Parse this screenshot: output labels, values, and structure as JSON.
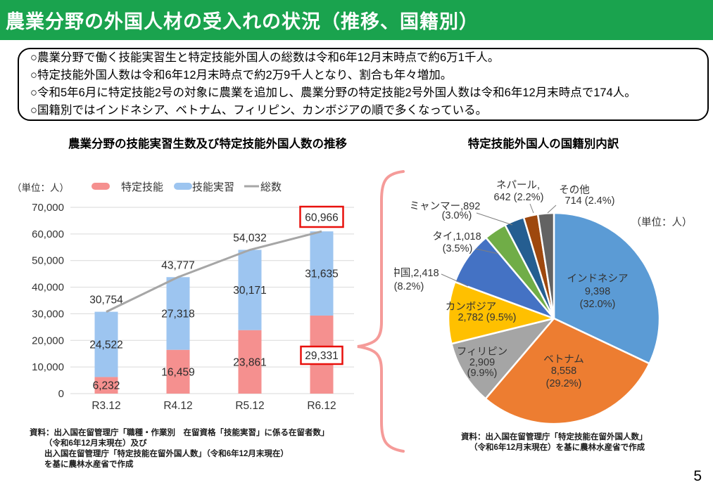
{
  "page": {
    "number": "5"
  },
  "header": {
    "title": "農業分野の外国人材の受入れの状況（推移、国籍別）",
    "bg_color": "#1AA34E",
    "text_color": "#FFFFFF"
  },
  "summary_box": {
    "bullets": [
      "○農業分野で働く技能実習生と特定技能外国人の総数は令和6年12月末時点で約6万1千人。",
      "○特定技能外国人数は令和6年12月末時点で約2万9千人となり、割合も年々増加。",
      "○令和5年6月に特定技能2号の対象に農業を追加し、農業分野の特定技能2号外国人数は令和6年12月末時点で174人。",
      "○国籍別ではインドネシア、ベトナム、フィリピン、カンボジアの順で多くなっている。"
    ]
  },
  "bar_section": {
    "unit_label": "（単位：人）",
    "source_lines": [
      "資料：出入国在留管理庁「職種・作業別　在留資格「技能実習」に係る在留者数」",
      "（令和6年12月末現在）及び",
      "出入国在留管理庁「特定技能在留外国人数」（令和6年12月末現在）",
      "を基に農林水産省で作成"
    ]
  },
  "pie_section": {
    "unit_label": "（単位：人）",
    "source_lines": [
      "資料：出入国在留管理庁「特定技能在留外国人数」",
      "（令和6年12月末現在）を基に農林水産省で作成"
    ]
  },
  "chart_data": [
    {
      "type": "bar",
      "title": "農業分野の技能実習生数及び特定技能外国人数の推移",
      "stacked": true,
      "categories": [
        "R3.12",
        "R4.12",
        "R5.12",
        "R6.12"
      ],
      "series": [
        {
          "name": "特定技能",
          "color": "#F5908F",
          "values": [
            6232,
            16459,
            23861,
            29331
          ],
          "labels": [
            "6,232",
            "16,459",
            "23,861",
            "29,331"
          ]
        },
        {
          "name": "技能実習",
          "color": "#9DC5F0",
          "values": [
            24522,
            27318,
            30171,
            31635
          ],
          "labels": [
            "24,522",
            "27,318",
            "30,171",
            "31,635"
          ]
        }
      ],
      "total_series": {
        "name": "総数",
        "color": "#A6A6A6",
        "values": [
          30754,
          43777,
          54032,
          60966
        ],
        "labels": [
          "30,754",
          "43,777",
          "54,032",
          "60,966"
        ]
      },
      "ylim": [
        0,
        70000
      ],
      "ytick_labels": [
        "0",
        "10,000",
        "20,000",
        "30,000",
        "40,000",
        "50,000",
        "60,000",
        "70,000"
      ],
      "grid": true,
      "legend_position": "top",
      "highlight_box_color": "#E8100C",
      "highlighted_values": [
        "60,966",
        "29,331"
      ]
    },
    {
      "type": "pie",
      "title": "特定技能外国人の国籍別内訳",
      "unit_label": "（単位：人）",
      "total": 29331,
      "start_angle_deg": 0,
      "direction": "clockwise",
      "slices": [
        {
          "name": "インドネシア",
          "value": 9398,
          "pct": 32.0,
          "color": "#5B9BD5",
          "label_lines": [
            "インドネシア",
            "9,398",
            "(32.0%)"
          ]
        },
        {
          "name": "ベトナム",
          "value": 8558,
          "pct": 29.2,
          "color": "#ED7D31",
          "label_lines": [
            "ベトナム",
            "8,558",
            "(29.2%)"
          ]
        },
        {
          "name": "フィリピン",
          "value": 2909,
          "pct": 9.9,
          "color": "#A5A5A5",
          "label_lines": [
            "フィリピン",
            "2,909",
            "(9.9%)"
          ]
        },
        {
          "name": "カンボジア",
          "value": 2782,
          "pct": 9.5,
          "color": "#FFC000",
          "label_lines": [
            "カンボジア",
            "2,782 (9.5%)"
          ]
        },
        {
          "name": "中国",
          "value": 2418,
          "pct": 8.2,
          "color": "#4472C4",
          "label_lines": [
            "中国,2,418",
            "(8.2%)"
          ]
        },
        {
          "name": "タイ",
          "value": 1018,
          "pct": 3.5,
          "color": "#70AD47",
          "label_lines": [
            "タイ,1,018",
            "(3.5%)"
          ]
        },
        {
          "name": "ミャンマー",
          "value": 892,
          "pct": 3.0,
          "color": "#255E91",
          "label_lines": [
            "ミャンマー,892",
            "(3.0%)"
          ]
        },
        {
          "name": "ネパール",
          "value": 642,
          "pct": 2.2,
          "color": "#9E480E",
          "label_lines": [
            "ネパール,",
            "642 (2.2%)"
          ]
        },
        {
          "name": "その他",
          "value": 714,
          "pct": 2.4,
          "color": "#636363",
          "label_lines": [
            "その他",
            "714 (2.4%)"
          ]
        }
      ]
    }
  ]
}
